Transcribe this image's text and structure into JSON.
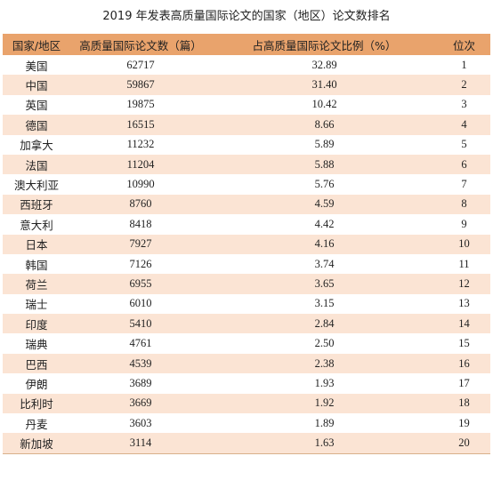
{
  "title": "2019 年发表高质量国际论文的国家（地区）论文数排名",
  "headers": [
    "国家/地区",
    "高质量国际论文数（篇）",
    "占高质量国际论文比例（%）",
    "位次"
  ],
  "rows": [
    [
      "美国",
      "62717",
      "32.89",
      "1"
    ],
    [
      "中国",
      "59867",
      "31.40",
      "2"
    ],
    [
      "英国",
      "19875",
      "10.42",
      "3"
    ],
    [
      "德国",
      "16515",
      "8.66",
      "4"
    ],
    [
      "加拿大",
      "11232",
      "5.89",
      "5"
    ],
    [
      "法国",
      "11204",
      "5.88",
      "6"
    ],
    [
      "澳大利亚",
      "10990",
      "5.76",
      "7"
    ],
    [
      "西班牙",
      "8760",
      "4.59",
      "8"
    ],
    [
      "意大利",
      "8418",
      "4.42",
      "9"
    ],
    [
      "日本",
      "7927",
      "4.16",
      "10"
    ],
    [
      "韩国",
      "7126",
      "3.74",
      "11"
    ],
    [
      "荷兰",
      "6955",
      "3.65",
      "12"
    ],
    [
      "瑞士",
      "6010",
      "3.15",
      "13"
    ],
    [
      "印度",
      "5410",
      "2.84",
      "14"
    ],
    [
      "瑞典",
      "4761",
      "2.50",
      "15"
    ],
    [
      "巴西",
      "4539",
      "2.38",
      "16"
    ],
    [
      "伊朗",
      "3689",
      "1.93",
      "17"
    ],
    [
      "比利时",
      "3669",
      "1.92",
      "18"
    ],
    [
      "丹麦",
      "3603",
      "1.89",
      "19"
    ],
    [
      "新加坡",
      "3114",
      "1.63",
      "20"
    ]
  ],
  "colors": {
    "header": "#e9a36c",
    "stripe": "#fbe4d4"
  }
}
